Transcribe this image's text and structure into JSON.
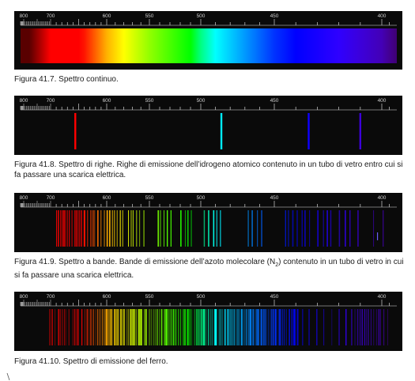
{
  "scale_ticks": [
    "800",
    "700",
    "600",
    "550",
    "500",
    "450",
    "400"
  ],
  "figures": [
    {
      "id": "fig-41-7",
      "type": "continuous",
      "caption_number": "Figura 41.7.",
      "caption_text": "Spettro continuo."
    },
    {
      "id": "fig-41-8",
      "type": "lines",
      "caption_number": "Figura 41.8.",
      "caption_text": "Spettro di righe. Righe di emissione dell’idrogeno atomico contenuto in un tubo di vetro entro cui si fa passare una scarica elettrica.",
      "lines_nm": [
        656,
        486,
        434,
        410
      ]
    },
    {
      "id": "fig-41-9",
      "type": "bands",
      "caption_number": "Figura 41.9.",
      "caption_pre": "Spettro a bande. Bande di emissione dell’azoto molecolare (N",
      "caption_sub": "2",
      "caption_post": ") contenuto in un tubo di vetro in cui si fa passare una scarica elettrica."
    },
    {
      "id": "fig-41-10",
      "type": "iron",
      "caption_number": "Figura 41.10.",
      "caption_text": "Spettro di emissione del ferro."
    }
  ]
}
